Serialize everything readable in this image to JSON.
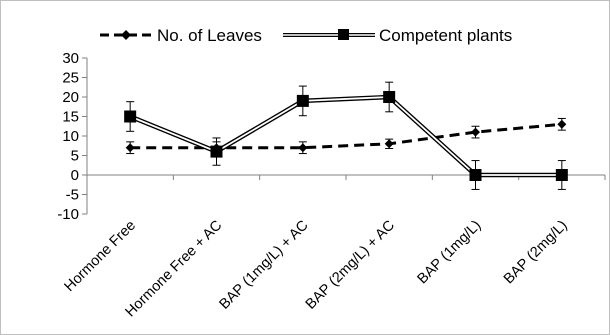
{
  "chart_data": {
    "type": "line",
    "categories": [
      "Hormone  Free",
      "Hormone Free + AC",
      "BAP (1mg/L) + AC",
      "BAP (2mg/L) + AC",
      "BAP (1mg/L)",
      "BAP (2mg/L)"
    ],
    "series": [
      {
        "name": "No. of Leaves",
        "values": [
          7,
          7,
          7,
          8,
          11,
          13
        ],
        "errors": [
          1.5,
          1.5,
          1.5,
          1.2,
          1.5,
          1.5
        ],
        "style": "dashed",
        "marker": "diamond",
        "color": "#000000"
      },
      {
        "name": "Competent plants",
        "values": [
          15,
          6,
          19,
          20,
          0,
          0
        ],
        "errors": [
          3.8,
          3.5,
          3.8,
          3.8,
          3.7,
          3.7
        ],
        "style": "double",
        "marker": "square",
        "color": "#000000"
      }
    ],
    "yticks": [
      "30",
      "25",
      "20",
      "15",
      "10",
      "5",
      "0",
      "-5",
      "-10"
    ],
    "ylim": [
      -10,
      30
    ],
    "ystep": 5,
    "grid": false,
    "legend_position": "top"
  }
}
